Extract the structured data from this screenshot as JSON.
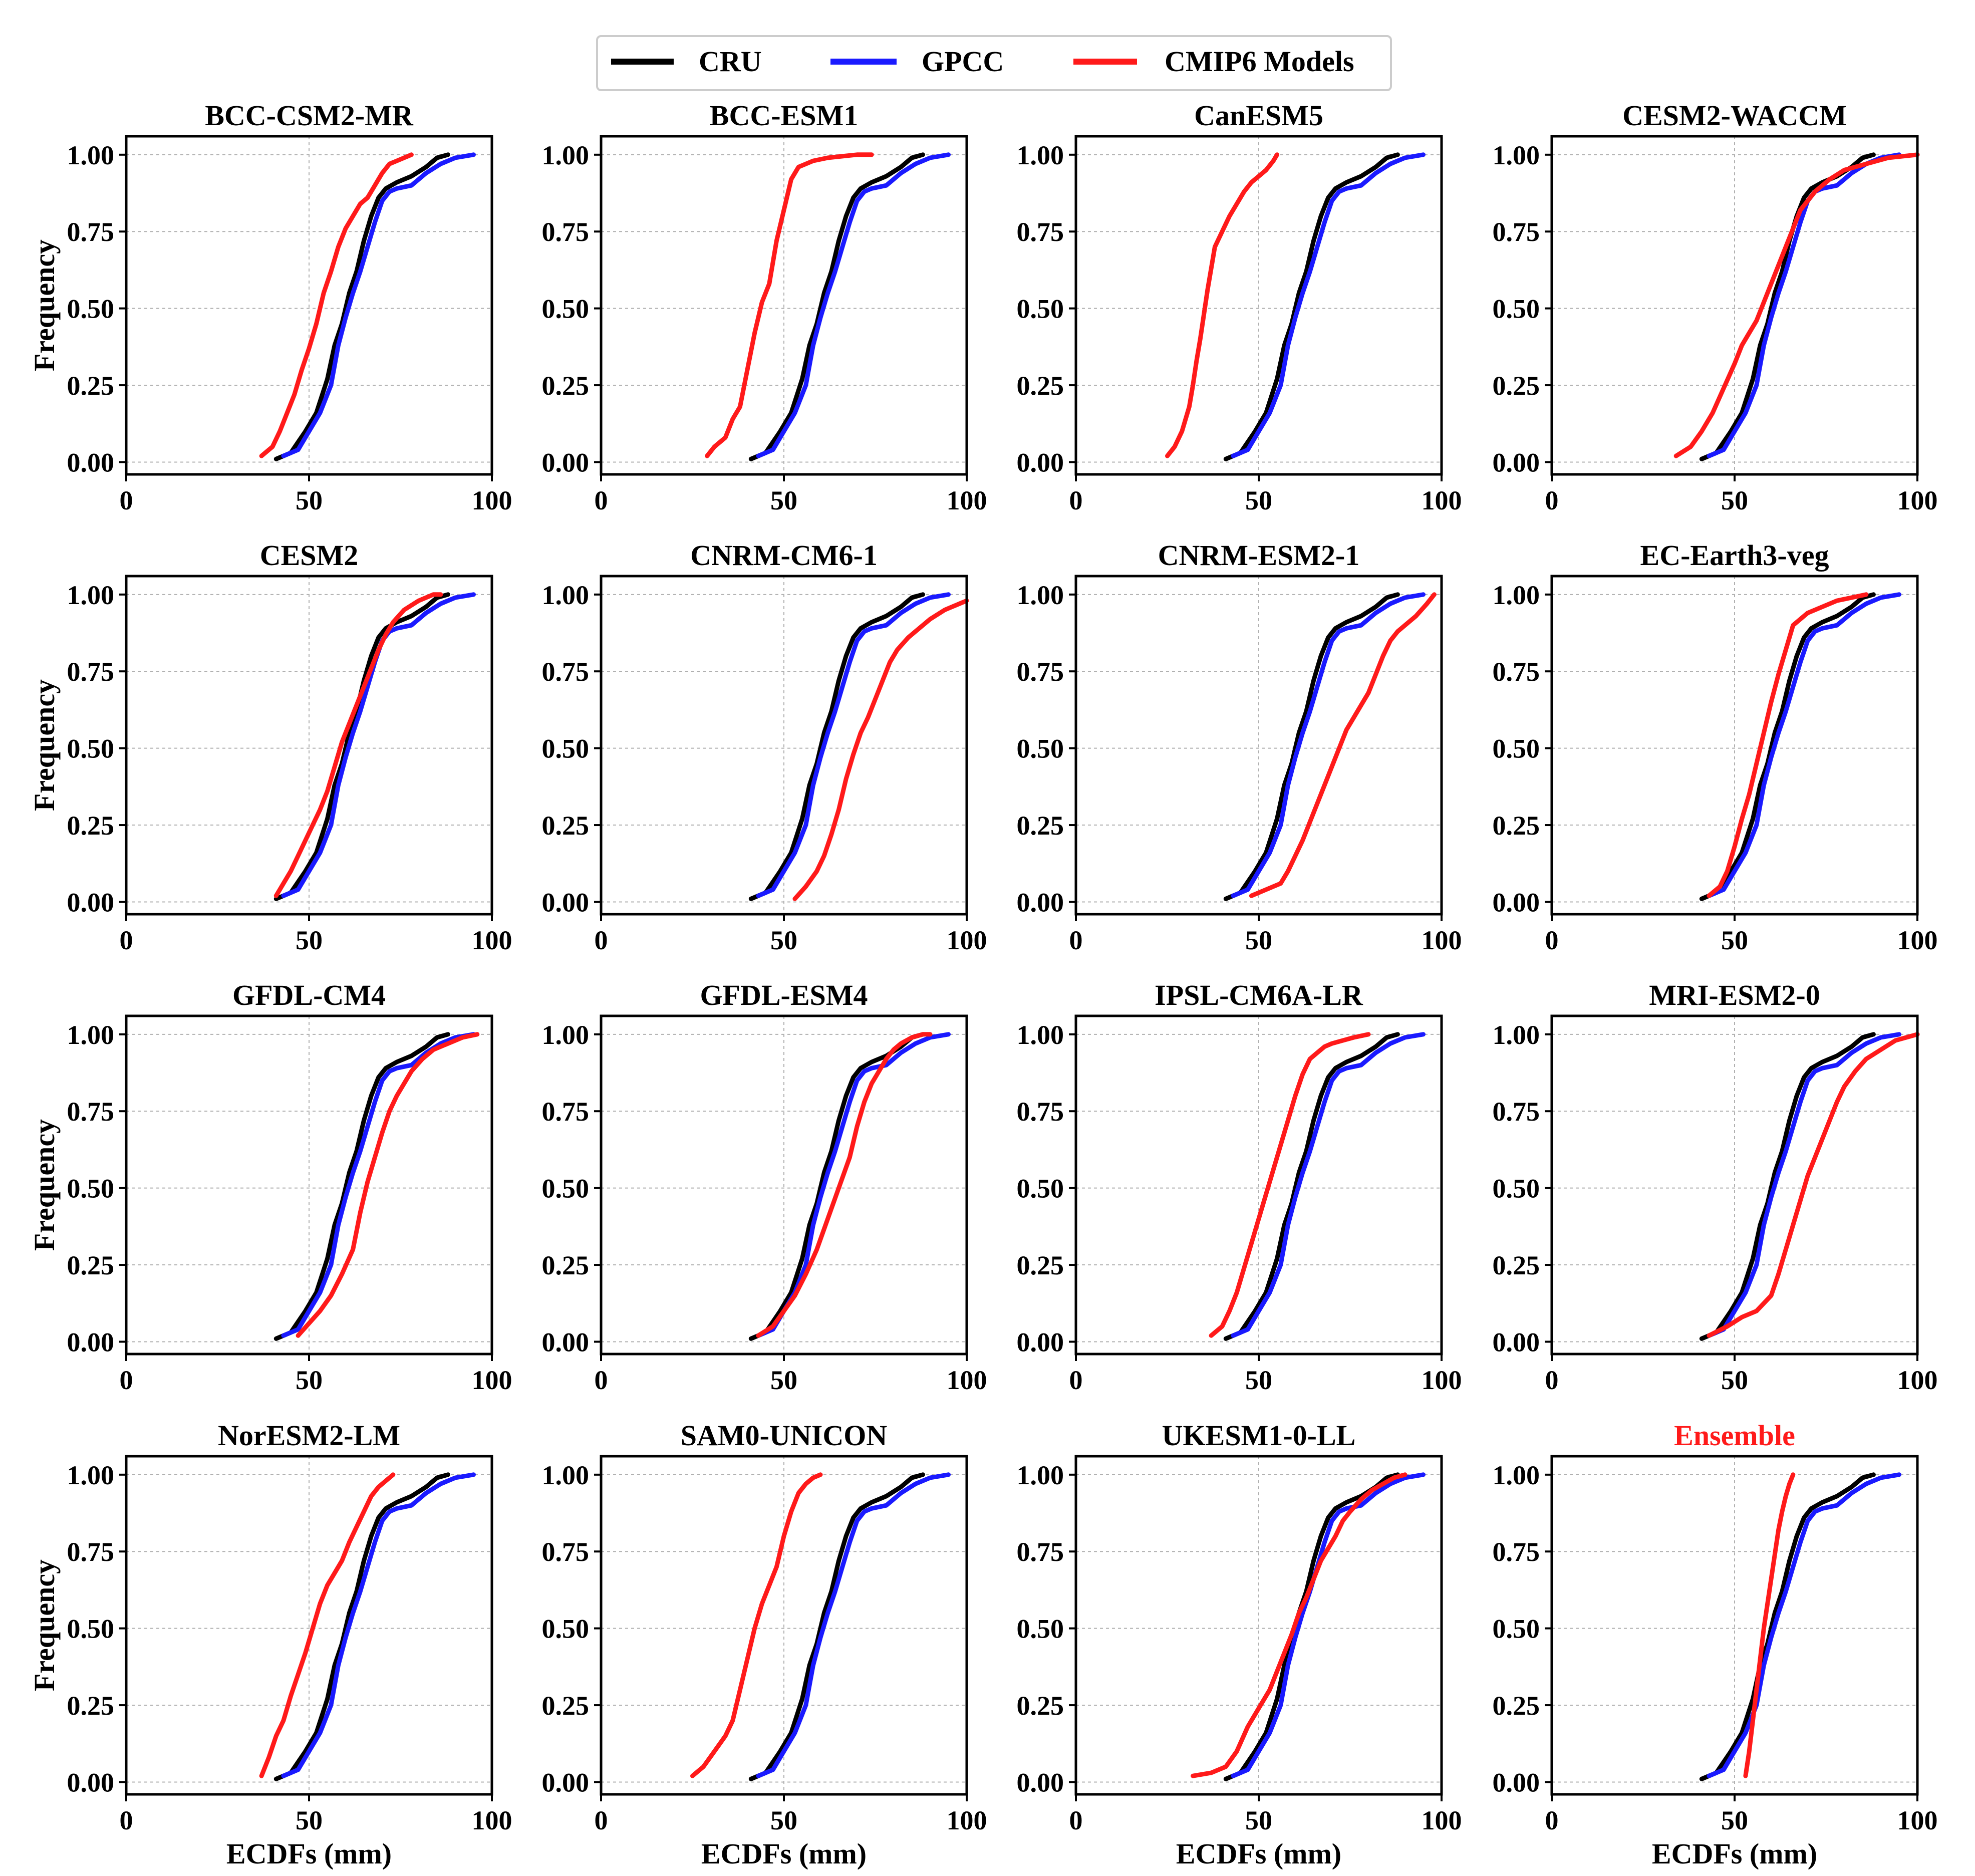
{
  "legend": [
    {
      "label": "CRU",
      "color": "#000000"
    },
    {
      "label": "GPCC",
      "color": "#1a1aff"
    },
    {
      "label": "CMIP6 Models",
      "color": "#ff1a1a"
    }
  ],
  "axes_text": {
    "ylabel": "Frequency",
    "xlabel": "ECDFs (mm)",
    "xticks": [
      "0",
      "50",
      "100"
    ],
    "yticks": [
      "0.00",
      "0.25",
      "0.50",
      "0.75",
      "1.00"
    ]
  },
  "colors": {
    "cru": "#000000",
    "gpcc": "#1a1aff",
    "model": "#ff1a1a",
    "ensemble_title": "#ff1a1a"
  },
  "chart_data": {
    "type": "line",
    "xlim": [
      0,
      100
    ],
    "ylim": [
      0,
      1
    ],
    "grid": true,
    "legend_position": "top-center",
    "reference": {
      "CRU": {
        "x": [
          41,
          45,
          49,
          52,
          55,
          57,
          59,
          61,
          63,
          65,
          67,
          69,
          71,
          74,
          78,
          82,
          85,
          88
        ],
        "y": [
          0.01,
          0.03,
          0.1,
          0.16,
          0.27,
          0.38,
          0.45,
          0.55,
          0.62,
          0.72,
          0.8,
          0.86,
          0.89,
          0.91,
          0.93,
          0.96,
          0.99,
          1.0
        ]
      },
      "GPCC": {
        "x": [
          43,
          47,
          50,
          53,
          56,
          58,
          60,
          62,
          64,
          66,
          68,
          70,
          72,
          74,
          78,
          82,
          86,
          90,
          95
        ],
        "y": [
          0.02,
          0.04,
          0.1,
          0.16,
          0.25,
          0.38,
          0.47,
          0.55,
          0.62,
          0.7,
          0.78,
          0.85,
          0.88,
          0.89,
          0.9,
          0.94,
          0.97,
          0.99,
          1.0
        ]
      }
    },
    "panels": [
      {
        "title": "BCC-CSM2-MR",
        "model": {
          "x": [
            37,
            40,
            42,
            44,
            46,
            48,
            50,
            52,
            54,
            56,
            58,
            60,
            62,
            64,
            66,
            68,
            70,
            72,
            74,
            76,
            78
          ],
          "y": [
            0.02,
            0.05,
            0.1,
            0.16,
            0.22,
            0.3,
            0.37,
            0.45,
            0.55,
            0.62,
            0.7,
            0.76,
            0.8,
            0.84,
            0.86,
            0.9,
            0.94,
            0.97,
            0.98,
            0.99,
            1.0
          ]
        }
      },
      {
        "title": "BCC-ESM1",
        "model": {
          "x": [
            29,
            31,
            34,
            36,
            38,
            40,
            42,
            44,
            46,
            48,
            50,
            52,
            54,
            58,
            62,
            66,
            70,
            74
          ],
          "y": [
            0.02,
            0.05,
            0.08,
            0.14,
            0.18,
            0.3,
            0.42,
            0.52,
            0.58,
            0.72,
            0.82,
            0.92,
            0.96,
            0.98,
            0.99,
            0.995,
            1.0,
            1.0
          ]
        }
      },
      {
        "title": "CanESM5",
        "model": {
          "x": [
            25,
            27,
            29,
            31,
            32,
            33,
            34,
            35,
            36,
            37,
            38,
            40,
            42,
            44,
            46,
            48,
            50,
            52,
            54,
            55
          ],
          "y": [
            0.02,
            0.05,
            0.1,
            0.18,
            0.25,
            0.33,
            0.4,
            0.48,
            0.56,
            0.63,
            0.7,
            0.75,
            0.8,
            0.84,
            0.88,
            0.91,
            0.93,
            0.95,
            0.98,
            1.0
          ]
        }
      },
      {
        "title": "CESM2-WACCM",
        "model": {
          "x": [
            34,
            38,
            41,
            44,
            47,
            50,
            52,
            54,
            56,
            58,
            60,
            62,
            64,
            66,
            68,
            72,
            76,
            80,
            86,
            92,
            100
          ],
          "y": [
            0.02,
            0.05,
            0.1,
            0.16,
            0.24,
            0.32,
            0.38,
            0.42,
            0.46,
            0.52,
            0.58,
            0.64,
            0.7,
            0.76,
            0.82,
            0.88,
            0.92,
            0.95,
            0.97,
            0.99,
            1.0
          ]
        }
      },
      {
        "title": "CESM2",
        "model": {
          "x": [
            41,
            43,
            45,
            47,
            49,
            51,
            53,
            55,
            57,
            59,
            61,
            63,
            65,
            67,
            69,
            71,
            73,
            76,
            80,
            84,
            86
          ],
          "y": [
            0.02,
            0.06,
            0.1,
            0.15,
            0.2,
            0.25,
            0.3,
            0.36,
            0.44,
            0.52,
            0.58,
            0.64,
            0.7,
            0.76,
            0.82,
            0.87,
            0.91,
            0.95,
            0.98,
            1.0,
            1.0
          ]
        }
      },
      {
        "title": "CNRM-CM6-1",
        "model": {
          "x": [
            53,
            56,
            59,
            61,
            63,
            65,
            67,
            69,
            71,
            73,
            75,
            77,
            79,
            81,
            84,
            87,
            90,
            94,
            98,
            100
          ],
          "y": [
            0.01,
            0.05,
            0.1,
            0.15,
            0.22,
            0.3,
            0.4,
            0.48,
            0.55,
            0.6,
            0.66,
            0.72,
            0.78,
            0.82,
            0.86,
            0.89,
            0.92,
            0.95,
            0.97,
            0.98
          ]
        }
      },
      {
        "title": "CNRM-ESM2-1",
        "model": {
          "x": [
            48,
            52,
            56,
            58,
            60,
            62,
            64,
            66,
            68,
            70,
            72,
            74,
            76,
            78,
            80,
            82,
            84,
            86,
            88,
            90,
            93,
            96,
            98
          ],
          "y": [
            0.02,
            0.04,
            0.06,
            0.1,
            0.15,
            0.2,
            0.26,
            0.32,
            0.38,
            0.44,
            0.5,
            0.56,
            0.6,
            0.64,
            0.68,
            0.74,
            0.8,
            0.85,
            0.88,
            0.9,
            0.93,
            0.97,
            1.0
          ]
        }
      },
      {
        "title": "EC-Earth3-veg",
        "model": {
          "x": [
            43,
            46,
            48,
            50,
            52,
            54,
            56,
            58,
            60,
            62,
            64,
            66,
            70,
            74,
            78,
            82,
            86
          ],
          "y": [
            0.02,
            0.05,
            0.1,
            0.18,
            0.27,
            0.35,
            0.45,
            0.55,
            0.65,
            0.74,
            0.82,
            0.9,
            0.94,
            0.96,
            0.98,
            0.99,
            1.0
          ]
        }
      },
      {
        "title": "GFDL-CM4",
        "model": {
          "x": [
            47,
            50,
            53,
            56,
            59,
            62,
            64,
            66,
            68,
            70,
            72,
            74,
            76,
            78,
            81,
            84,
            88,
            92,
            96
          ],
          "y": [
            0.02,
            0.06,
            0.1,
            0.15,
            0.22,
            0.3,
            0.42,
            0.52,
            0.6,
            0.68,
            0.75,
            0.8,
            0.84,
            0.88,
            0.92,
            0.95,
            0.97,
            0.99,
            1.0
          ]
        }
      },
      {
        "title": "GFDL-ESM4",
        "model": {
          "x": [
            43,
            47,
            50,
            53,
            56,
            59,
            62,
            65,
            68,
            70,
            72,
            74,
            76,
            78,
            80,
            82,
            85,
            88,
            90
          ],
          "y": [
            0.02,
            0.05,
            0.1,
            0.15,
            0.22,
            0.3,
            0.4,
            0.5,
            0.6,
            0.7,
            0.78,
            0.84,
            0.88,
            0.92,
            0.95,
            0.97,
            0.99,
            1.0,
            1.0
          ]
        }
      },
      {
        "title": "IPSL-CM6A-LR",
        "model": {
          "x": [
            37,
            40,
            42,
            44,
            46,
            48,
            50,
            52,
            54,
            56,
            58,
            60,
            62,
            64,
            66,
            68,
            70,
            73,
            76,
            80
          ],
          "y": [
            0.02,
            0.05,
            0.1,
            0.16,
            0.24,
            0.32,
            0.4,
            0.48,
            0.56,
            0.64,
            0.72,
            0.8,
            0.87,
            0.92,
            0.94,
            0.96,
            0.97,
            0.98,
            0.99,
            1.0
          ]
        }
      },
      {
        "title": "MRI-ESM2-0",
        "model": {
          "x": [
            43,
            48,
            52,
            56,
            60,
            62,
            64,
            66,
            68,
            70,
            72,
            74,
            76,
            78,
            80,
            83,
            86,
            90,
            94,
            100
          ],
          "y": [
            0.02,
            0.05,
            0.08,
            0.1,
            0.15,
            0.22,
            0.3,
            0.38,
            0.46,
            0.54,
            0.6,
            0.66,
            0.72,
            0.78,
            0.83,
            0.88,
            0.92,
            0.95,
            0.98,
            1.0
          ]
        }
      },
      {
        "title": "NorESM2-LM",
        "model": {
          "x": [
            37,
            39,
            41,
            43,
            45,
            47,
            49,
            51,
            53,
            55,
            57,
            59,
            61,
            63,
            65,
            67,
            69,
            71,
            73
          ],
          "y": [
            0.02,
            0.08,
            0.15,
            0.2,
            0.28,
            0.35,
            0.42,
            0.5,
            0.58,
            0.64,
            0.68,
            0.72,
            0.78,
            0.83,
            0.88,
            0.93,
            0.96,
            0.98,
            1.0
          ]
        }
      },
      {
        "title": "SAM0-UNICON",
        "model": {
          "x": [
            25,
            28,
            31,
            34,
            36,
            38,
            40,
            42,
            44,
            46,
            48,
            50,
            52,
            54,
            56,
            58,
            60
          ],
          "y": [
            0.02,
            0.05,
            0.1,
            0.15,
            0.2,
            0.3,
            0.4,
            0.5,
            0.58,
            0.64,
            0.7,
            0.8,
            0.88,
            0.94,
            0.97,
            0.99,
            1.0
          ]
        }
      },
      {
        "title": "UKESM1-0-LL",
        "model": {
          "x": [
            32,
            37,
            41,
            44,
            47,
            50,
            53,
            55,
            57,
            59,
            61,
            63,
            65,
            67,
            69,
            71,
            73,
            75,
            78,
            81,
            84,
            87,
            90
          ],
          "y": [
            0.02,
            0.03,
            0.05,
            0.1,
            0.18,
            0.24,
            0.3,
            0.36,
            0.42,
            0.48,
            0.55,
            0.6,
            0.66,
            0.72,
            0.76,
            0.8,
            0.85,
            0.88,
            0.92,
            0.95,
            0.97,
            0.99,
            1.0
          ]
        }
      },
      {
        "title": "Ensemble",
        "title_color": "#ff1a1a",
        "model": {
          "x": [
            53,
            54,
            55,
            56,
            57,
            58,
            59,
            60,
            61,
            62,
            63,
            64,
            65,
            66
          ],
          "y": [
            0.02,
            0.1,
            0.2,
            0.3,
            0.4,
            0.5,
            0.58,
            0.66,
            0.74,
            0.82,
            0.88,
            0.93,
            0.97,
            1.0
          ]
        }
      }
    ]
  }
}
